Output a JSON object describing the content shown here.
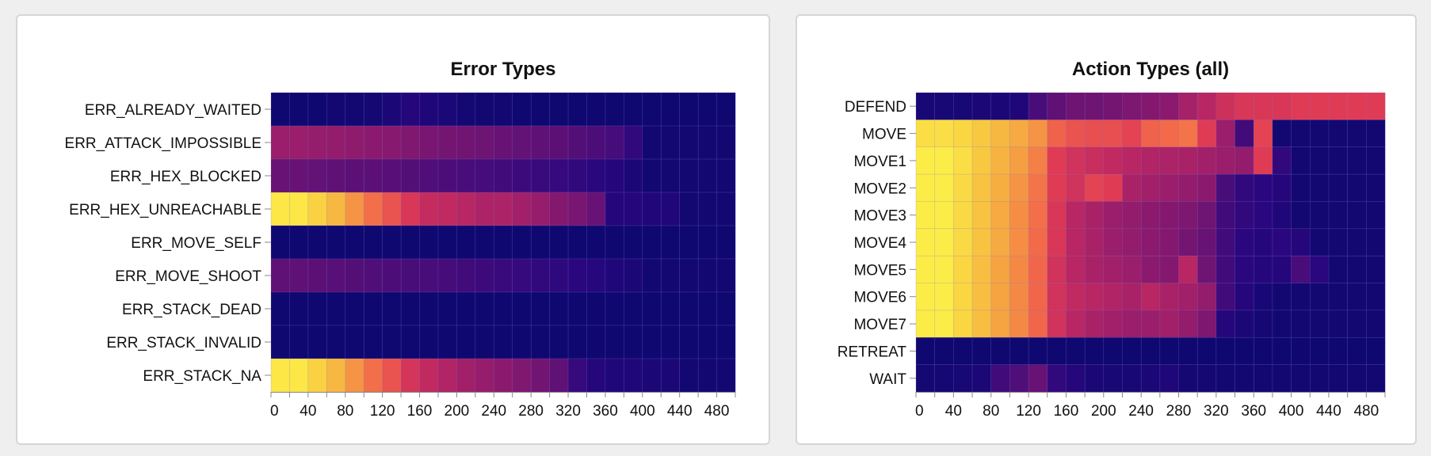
{
  "chart_data": [
    {
      "type": "heatmap",
      "title": "Error Types",
      "xlabel": "",
      "ylabel": "",
      "x_bin_width": 20,
      "xlim": [
        0,
        500
      ],
      "x_ticks": [
        "0",
        "40",
        "80",
        "120",
        "160",
        "200",
        "240",
        "280",
        "320",
        "360",
        "400",
        "440",
        "480"
      ],
      "categories": [
        "ERR_ALREADY_WAITED",
        "ERR_ATTACK_IMPOSSIBLE",
        "ERR_HEX_BLOCKED",
        "ERR_HEX_UNREACHABLE",
        "ERR_MOVE_SELF",
        "ERR_MOVE_SHOOT",
        "ERR_STACK_DEAD",
        "ERR_STACK_INVALID",
        "ERR_STACK_NA"
      ],
      "values": [
        [
          0.02,
          0.02,
          0.02,
          0.03,
          0.03,
          0.04,
          0.06,
          0.1,
          0.08,
          0.06,
          0.04,
          0.03,
          0.03,
          0.02,
          0.02,
          0.02,
          0.02,
          0.02,
          0.02,
          0.02,
          0.02,
          0.02,
          0.02,
          0.02,
          0.02
        ],
        [
          0.42,
          0.42,
          0.41,
          0.4,
          0.39,
          0.38,
          0.37,
          0.35,
          0.33,
          0.32,
          0.31,
          0.3,
          0.28,
          0.27,
          0.26,
          0.25,
          0.23,
          0.21,
          0.19,
          0.14,
          0.03,
          0.03,
          0.03,
          0.03,
          0.03
        ],
        [
          0.28,
          0.28,
          0.27,
          0.26,
          0.25,
          0.25,
          0.24,
          0.23,
          0.22,
          0.21,
          0.2,
          0.19,
          0.18,
          0.17,
          0.16,
          0.15,
          0.14,
          0.12,
          0.1,
          0.06,
          0.03,
          0.03,
          0.03,
          0.03,
          0.03
        ],
        [
          0.97,
          0.97,
          0.92,
          0.87,
          0.8,
          0.73,
          0.66,
          0.58,
          0.53,
          0.52,
          0.5,
          0.47,
          0.47,
          0.44,
          0.41,
          0.36,
          0.33,
          0.28,
          0.1,
          0.1,
          0.08,
          0.08,
          0.03,
          0.03,
          0.03
        ],
        [
          0.02,
          0.02,
          0.02,
          0.02,
          0.02,
          0.02,
          0.02,
          0.02,
          0.02,
          0.02,
          0.02,
          0.02,
          0.02,
          0.02,
          0.02,
          0.02,
          0.02,
          0.02,
          0.02,
          0.02,
          0.02,
          0.02,
          0.02,
          0.02,
          0.02
        ],
        [
          0.26,
          0.26,
          0.25,
          0.24,
          0.23,
          0.22,
          0.21,
          0.2,
          0.2,
          0.19,
          0.18,
          0.17,
          0.16,
          0.15,
          0.14,
          0.13,
          0.12,
          0.11,
          0.08,
          0.06,
          0.03,
          0.03,
          0.03,
          0.03,
          0.03
        ],
        [
          0.02,
          0.02,
          0.02,
          0.02,
          0.02,
          0.02,
          0.02,
          0.02,
          0.02,
          0.02,
          0.02,
          0.02,
          0.02,
          0.02,
          0.02,
          0.02,
          0.02,
          0.02,
          0.02,
          0.02,
          0.02,
          0.02,
          0.02,
          0.02,
          0.02
        ],
        [
          0.02,
          0.02,
          0.02,
          0.02,
          0.02,
          0.02,
          0.02,
          0.02,
          0.02,
          0.02,
          0.02,
          0.02,
          0.02,
          0.02,
          0.02,
          0.02,
          0.02,
          0.02,
          0.02,
          0.02,
          0.02,
          0.02,
          0.02,
          0.02,
          0.02
        ],
        [
          0.97,
          0.97,
          0.92,
          0.87,
          0.8,
          0.73,
          0.66,
          0.57,
          0.52,
          0.48,
          0.44,
          0.41,
          0.38,
          0.35,
          0.31,
          0.26,
          0.15,
          0.1,
          0.08,
          0.08,
          0.06,
          0.06,
          0.03,
          0.03,
          0.03
        ]
      ]
    },
    {
      "type": "heatmap",
      "title": "Action Types (all)",
      "xlabel": "",
      "ylabel": "",
      "x_bin_width": 20,
      "xlim": [
        0,
        500
      ],
      "x_ticks": [
        "0",
        "40",
        "80",
        "120",
        "160",
        "200",
        "240",
        "280",
        "320",
        "360",
        "400",
        "440",
        "480"
      ],
      "categories": [
        "DEFEND",
        "MOVE",
        "MOVE1",
        "MOVE2",
        "MOVE3",
        "MOVE4",
        "MOVE5",
        "MOVE6",
        "MOVE7",
        "RETREAT",
        "WAIT"
      ],
      "values": [
        [
          0.05,
          0.05,
          0.05,
          0.06,
          0.06,
          0.08,
          0.2,
          0.26,
          0.3,
          0.3,
          0.32,
          0.34,
          0.36,
          0.38,
          0.45,
          0.5,
          0.55,
          0.58,
          0.58,
          0.58,
          0.6,
          0.6,
          0.6,
          0.6,
          0.6
        ],
        [
          0.95,
          0.95,
          0.93,
          0.9,
          0.87,
          0.84,
          0.8,
          0.7,
          0.66,
          0.65,
          0.65,
          0.62,
          0.7,
          0.72,
          0.74,
          0.6,
          0.42,
          0.18,
          0.62,
          0.03,
          0.03,
          0.03,
          0.03,
          0.03,
          0.03
        ],
        [
          0.98,
          0.98,
          0.95,
          0.9,
          0.86,
          0.82,
          0.76,
          0.6,
          0.56,
          0.54,
          0.52,
          0.5,
          0.48,
          0.47,
          0.46,
          0.44,
          0.42,
          0.4,
          0.6,
          0.14,
          0.03,
          0.03,
          0.03,
          0.03,
          0.03
        ],
        [
          0.98,
          0.98,
          0.94,
          0.89,
          0.85,
          0.8,
          0.74,
          0.6,
          0.56,
          0.62,
          0.6,
          0.46,
          0.44,
          0.42,
          0.4,
          0.38,
          0.2,
          0.14,
          0.12,
          0.1,
          0.03,
          0.03,
          0.03,
          0.03,
          0.03
        ],
        [
          0.98,
          0.98,
          0.94,
          0.89,
          0.84,
          0.79,
          0.73,
          0.58,
          0.5,
          0.46,
          0.42,
          0.4,
          0.38,
          0.36,
          0.34,
          0.3,
          0.18,
          0.14,
          0.12,
          0.08,
          0.03,
          0.03,
          0.03,
          0.03,
          0.03
        ],
        [
          0.98,
          0.98,
          0.94,
          0.89,
          0.84,
          0.79,
          0.72,
          0.58,
          0.5,
          0.46,
          0.42,
          0.4,
          0.38,
          0.36,
          0.32,
          0.28,
          0.18,
          0.12,
          0.1,
          0.12,
          0.1,
          0.03,
          0.03,
          0.03,
          0.03
        ],
        [
          0.98,
          0.98,
          0.93,
          0.88,
          0.83,
          0.78,
          0.71,
          0.56,
          0.5,
          0.46,
          0.44,
          0.42,
          0.38,
          0.36,
          0.5,
          0.3,
          0.18,
          0.12,
          0.1,
          0.1,
          0.2,
          0.12,
          0.03,
          0.03,
          0.03
        ],
        [
          0.98,
          0.98,
          0.93,
          0.88,
          0.83,
          0.78,
          0.71,
          0.56,
          0.52,
          0.5,
          0.48,
          0.46,
          0.5,
          0.46,
          0.44,
          0.4,
          0.18,
          0.1,
          0.05,
          0.03,
          0.03,
          0.03,
          0.03,
          0.03,
          0.03
        ],
        [
          0.98,
          0.98,
          0.93,
          0.88,
          0.83,
          0.78,
          0.71,
          0.56,
          0.5,
          0.46,
          0.44,
          0.42,
          0.42,
          0.44,
          0.4,
          0.34,
          0.1,
          0.06,
          0.04,
          0.03,
          0.03,
          0.03,
          0.03,
          0.03,
          0.03
        ],
        [
          0.02,
          0.02,
          0.02,
          0.02,
          0.02,
          0.02,
          0.02,
          0.02,
          0.02,
          0.02,
          0.02,
          0.02,
          0.02,
          0.02,
          0.02,
          0.02,
          0.02,
          0.02,
          0.02,
          0.02,
          0.02,
          0.02,
          0.02,
          0.02,
          0.02
        ],
        [
          0.04,
          0.04,
          0.05,
          0.06,
          0.18,
          0.22,
          0.28,
          0.14,
          0.1,
          0.06,
          0.05,
          0.05,
          0.06,
          0.08,
          0.04,
          0.04,
          0.03,
          0.03,
          0.03,
          0.03,
          0.03,
          0.03,
          0.03,
          0.03,
          0.03
        ]
      ]
    }
  ]
}
